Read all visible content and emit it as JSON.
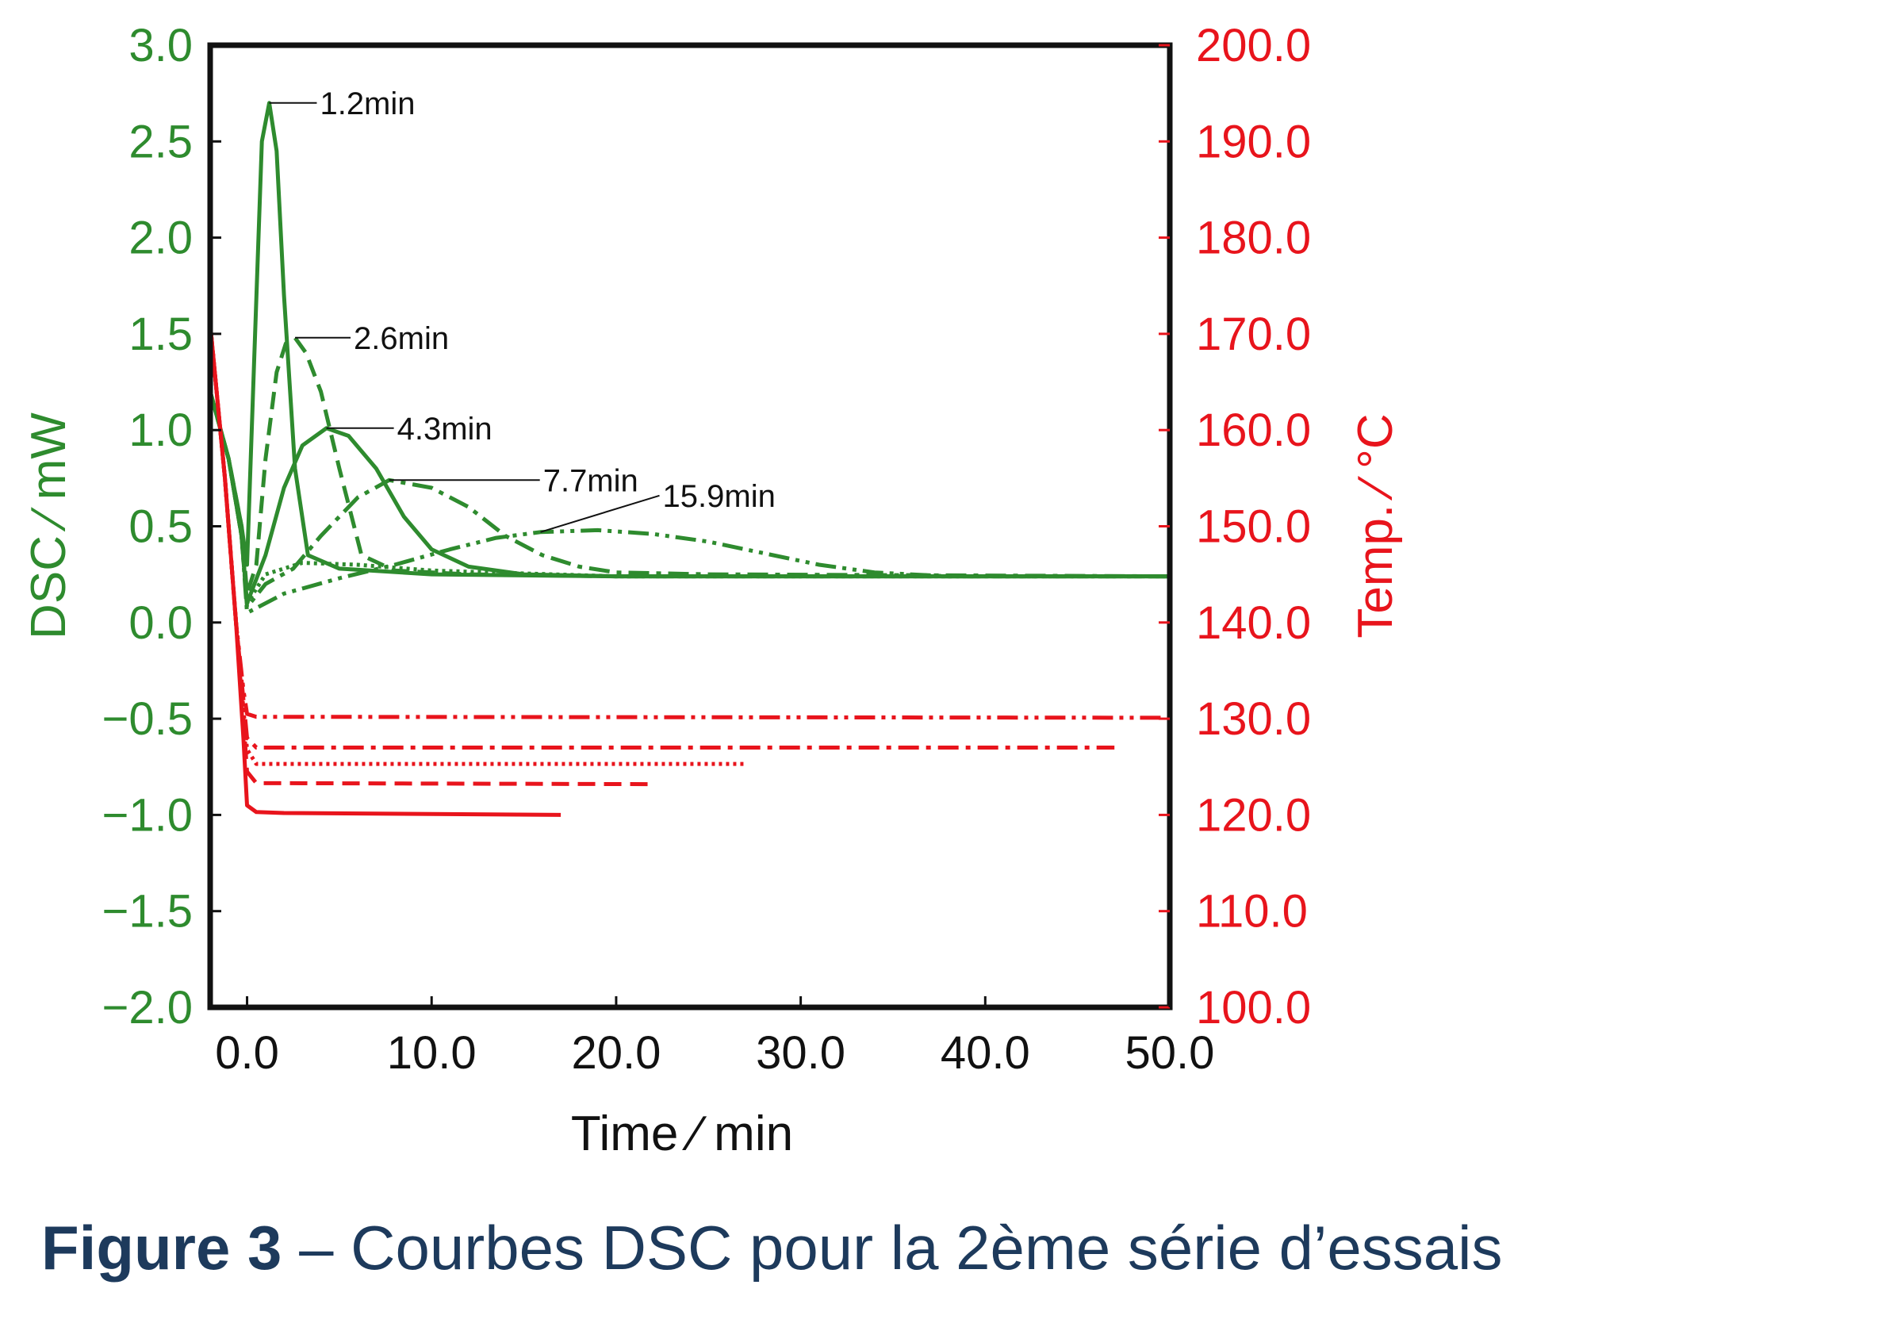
{
  "colors": {
    "dsc": "#2e8b2e",
    "temp": "#e8141c",
    "axes": "#111111",
    "caption": "#1d3a5c"
  },
  "caption": {
    "label": "Figure 3",
    "text": " – Courbes DSC pour la 2ème série d’essais"
  },
  "chart_data": {
    "type": "line",
    "x_axis": {
      "label": "Time ∕ min",
      "range": [
        -2.0,
        50.0
      ],
      "ticks": [
        "0.0",
        "10.0",
        "20.0",
        "30.0",
        "40.0",
        "50.0"
      ]
    },
    "y_left": {
      "label": "DSC ∕ mW",
      "range": [
        -2.0,
        3.0
      ],
      "ticks": [
        "3.0",
        "2.5",
        "2.0",
        "1.5",
        "1.0",
        "0.5",
        "0.0",
        "−0.5",
        "−1.0",
        "−1.5",
        "−2.0"
      ]
    },
    "y_right": {
      "label": "Temp. ∕ °C",
      "range": [
        100.0,
        200.0
      ],
      "ticks": [
        "200.0",
        "190.0",
        "180.0",
        "170.0",
        "160.0",
        "150.0",
        "140.0",
        "130.0",
        "120.0",
        "110.0",
        "100.0"
      ]
    },
    "grid": false,
    "legend": "none",
    "annotations": [
      {
        "text": "1.2min",
        "x": 1.2,
        "y": 2.7
      },
      {
        "text": "2.6min",
        "x": 2.6,
        "y": 1.48
      },
      {
        "text": "4.3min",
        "x": 4.3,
        "y": 1.01
      },
      {
        "text": "7.7min",
        "x": 7.7,
        "y": 0.74
      },
      {
        "text": "15.9min",
        "x": 15.9,
        "y": 0.47
      }
    ],
    "series": [
      {
        "axis": "left",
        "style": "solid",
        "x": [
          -2,
          -1,
          -0.3,
          0.0,
          0.4,
          0.8,
          1.2,
          1.6,
          2.0,
          2.6,
          3.3,
          5,
          10,
          20,
          50
        ],
        "y": [
          1.2,
          0.85,
          0.5,
          0.3,
          1.4,
          2.5,
          2.7,
          2.45,
          1.7,
          0.8,
          0.35,
          0.28,
          0.25,
          0.24,
          0.24
        ]
      },
      {
        "axis": "left",
        "style": "dashed",
        "x": [
          -2,
          -1,
          -0.3,
          0.0,
          0.5,
          1.0,
          1.6,
          2.1,
          2.6,
          3.2,
          4,
          5,
          6.2,
          8,
          12,
          20,
          50
        ],
        "y": [
          1.2,
          0.85,
          0.5,
          0.15,
          0.3,
          0.85,
          1.3,
          1.45,
          1.48,
          1.4,
          1.2,
          0.8,
          0.35,
          0.27,
          0.25,
          0.24,
          0.24
        ]
      },
      {
        "axis": "left",
        "style": "solid",
        "x": [
          -2,
          -1,
          -0.3,
          0.0,
          1,
          2,
          3,
          4.3,
          5.5,
          7,
          8.5,
          10,
          12,
          15,
          20,
          50
        ],
        "y": [
          1.2,
          0.85,
          0.45,
          0.1,
          0.35,
          0.7,
          0.92,
          1.01,
          0.97,
          0.8,
          0.55,
          0.38,
          0.29,
          0.25,
          0.24,
          0.24
        ]
      },
      {
        "axis": "left",
        "style": "dotted",
        "x": [
          -2,
          -1,
          -0.3,
          0.0,
          1,
          3,
          6,
          10,
          20,
          50
        ],
        "y": [
          1.2,
          0.85,
          0.45,
          0.1,
          0.25,
          0.31,
          0.3,
          0.27,
          0.24,
          0.24
        ]
      },
      {
        "axis": "left",
        "style": "dashdot",
        "x": [
          -2,
          -1,
          -0.3,
          0.0,
          1,
          2.5,
          4,
          6,
          7.7,
          10,
          12,
          14,
          16,
          18,
          20,
          25,
          50
        ],
        "y": [
          1.2,
          0.85,
          0.45,
          0.08,
          0.2,
          0.28,
          0.45,
          0.65,
          0.74,
          0.7,
          0.6,
          0.45,
          0.35,
          0.29,
          0.26,
          0.25,
          0.24
        ]
      },
      {
        "axis": "left",
        "style": "dashdotdot",
        "x": [
          -2,
          -1,
          -0.3,
          0.0,
          2,
          5,
          8,
          11,
          13.5,
          15.9,
          19,
          22,
          25,
          28,
          31,
          34,
          38,
          50
        ],
        "y": [
          1.2,
          0.85,
          0.45,
          0.05,
          0.15,
          0.23,
          0.3,
          0.38,
          0.44,
          0.47,
          0.48,
          0.46,
          0.42,
          0.36,
          0.3,
          0.26,
          0.24,
          0.24
        ]
      },
      {
        "axis": "right",
        "style": "solid",
        "x": [
          -2,
          -1.2,
          -0.6,
          -0.2,
          0.0,
          0.5,
          2,
          17
        ],
        "y": [
          171,
          155,
          140,
          128,
          121,
          120.3,
          120.2,
          120.0
        ]
      },
      {
        "axis": "right",
        "style": "dashed",
        "x": [
          -2,
          -1.2,
          -0.6,
          -0.2,
          0.0,
          0.5,
          2,
          22
        ],
        "y": [
          171,
          155,
          140,
          130,
          124.5,
          123.3,
          123.3,
          123.2
        ]
      },
      {
        "axis": "right",
        "style": "dotted",
        "x": [
          -2,
          -1.2,
          -0.6,
          -0.2,
          0.0,
          0.5,
          2,
          27
        ],
        "y": [
          171,
          155,
          140,
          131,
          126.8,
          125.3,
          125.3,
          125.3
        ]
      },
      {
        "axis": "right",
        "style": "dashdot",
        "x": [
          -2,
          -1.2,
          -0.6,
          -0.2,
          0.0,
          0.5,
          2,
          47
        ],
        "y": [
          171,
          155,
          140,
          132,
          128,
          127.0,
          127.0,
          127.0
        ]
      },
      {
        "axis": "right",
        "style": "dashdotdot",
        "x": [
          -2,
          -1.2,
          -0.6,
          -0.2,
          0.0,
          0.5,
          2,
          50
        ],
        "y": [
          171,
          155,
          140,
          133,
          130.5,
          130.2,
          130.2,
          130.1
        ]
      }
    ]
  }
}
